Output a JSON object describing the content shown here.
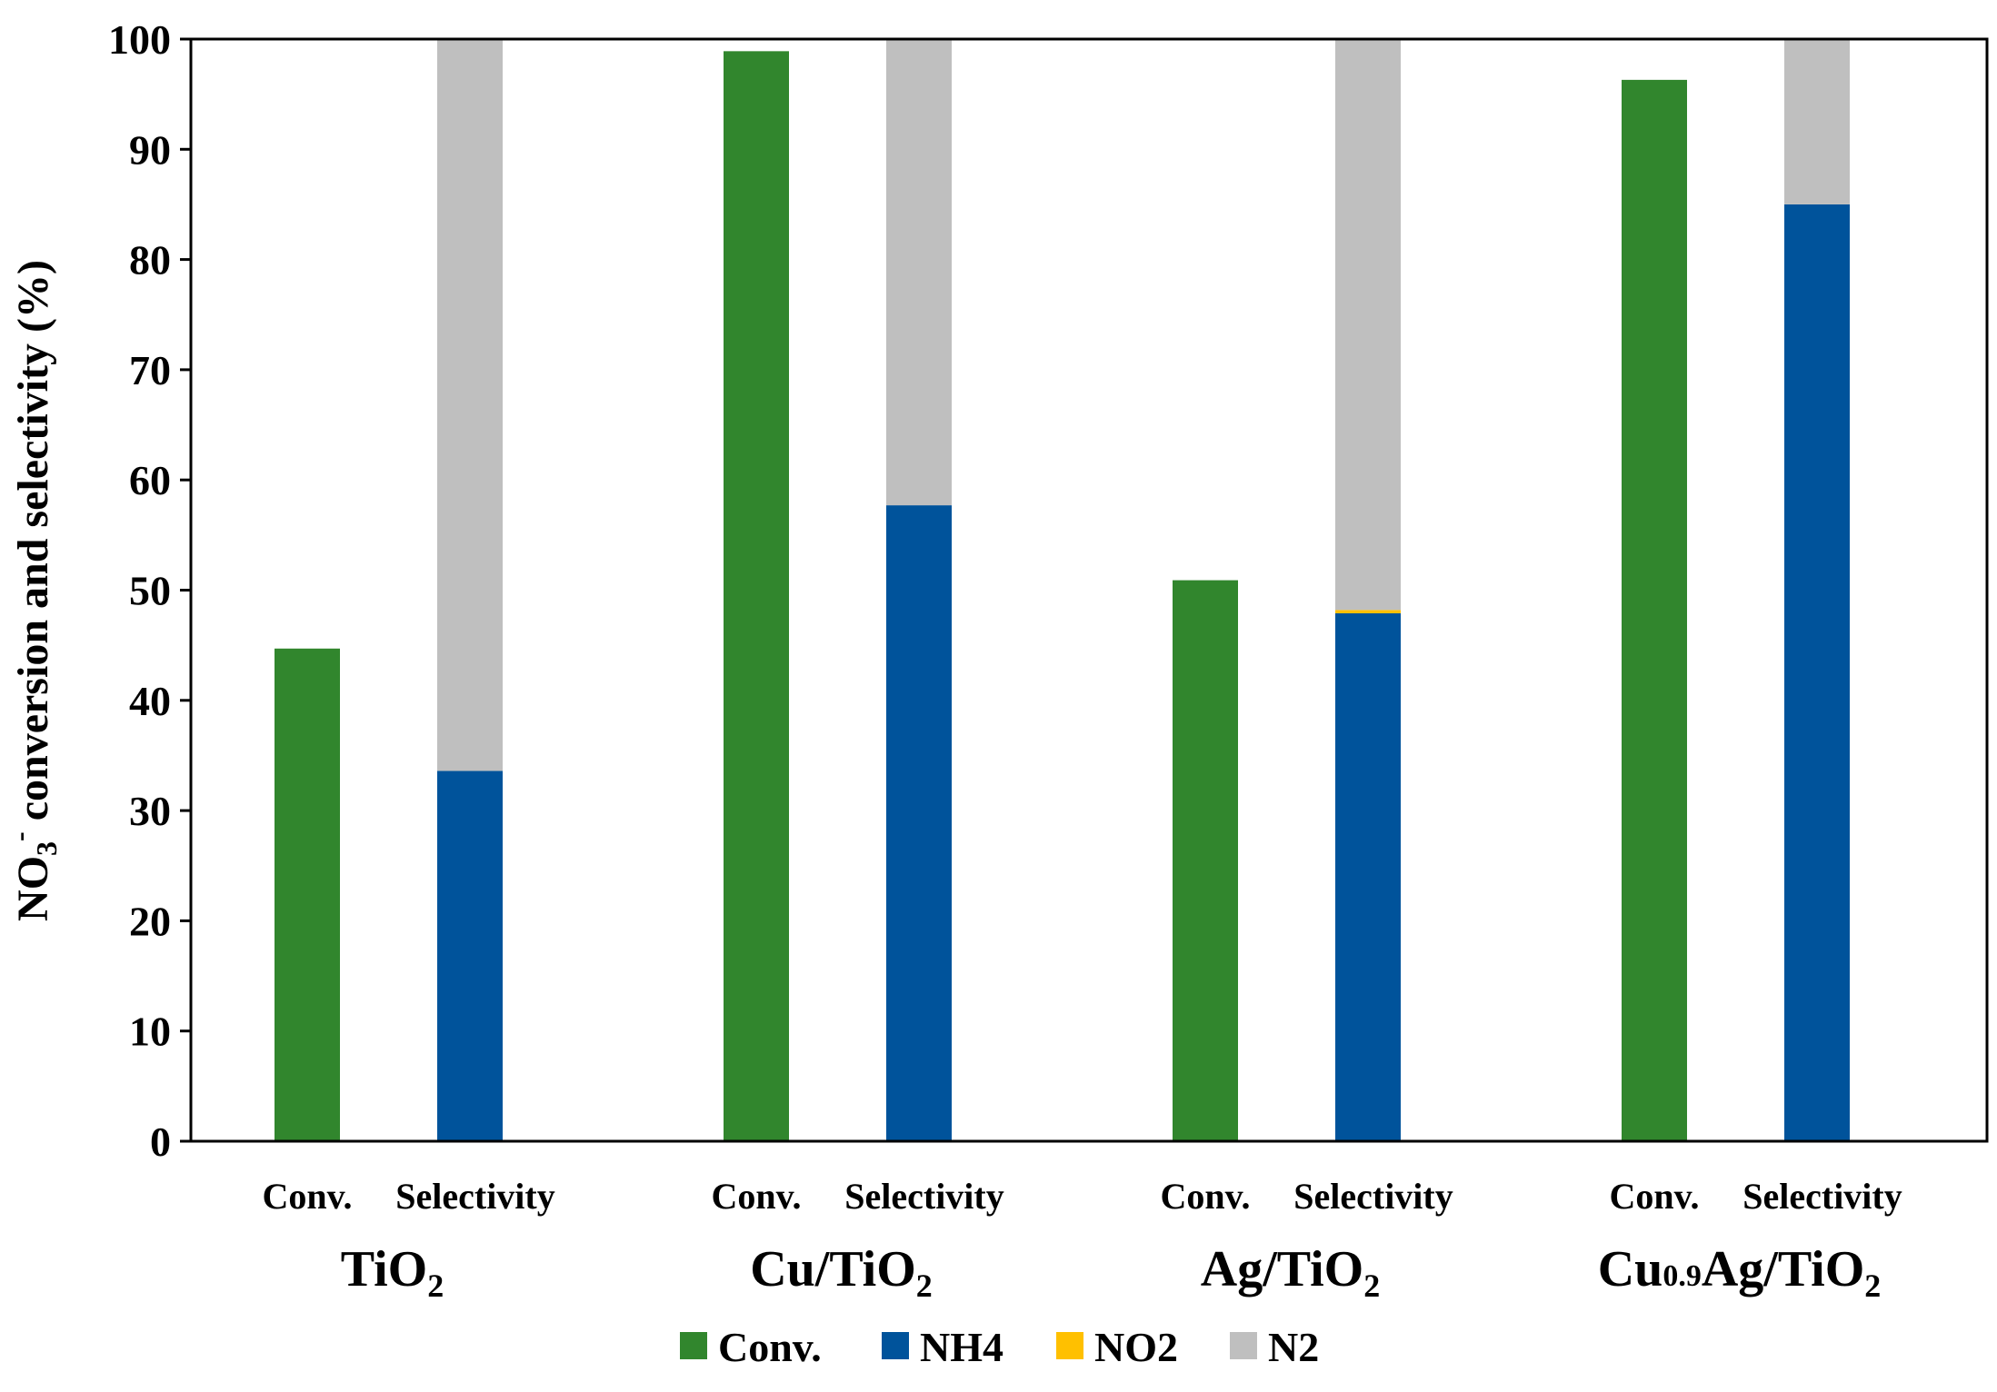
{
  "chart_data": {
    "type": "bar",
    "stacking": "stacked",
    "title": "",
    "ylabel": {
      "main": "NO",
      "sub": "3",
      "sup": "-",
      "rest": " conversion and selectivity (%)"
    },
    "ylim": [
      0,
      100
    ],
    "yticks": [
      "0",
      "10",
      "20",
      "30",
      "40",
      "50",
      "60",
      "70",
      "80",
      "90",
      "100"
    ],
    "groups": [
      {
        "name": "TiO2",
        "label": {
          "base": "TiO",
          "sub": "2"
        },
        "conv_label": "Conv.",
        "sel_label": "Selectivity",
        "conv": 44.7,
        "selectivity": {
          "NH4": 33.6,
          "NO2": 0.0,
          "N2": 66.4
        }
      },
      {
        "name": "Cu/TiO2",
        "label": {
          "base": "Cu/TiO",
          "sub": "2"
        },
        "conv_label": "Conv.",
        "sel_label": "Selectivity",
        "conv": 98.9,
        "selectivity": {
          "NH4": 57.7,
          "NO2": 0.0,
          "N2": 42.3
        }
      },
      {
        "name": "Ag/TiO2",
        "label": {
          "base": "Ag/TiO",
          "sub": "2"
        },
        "conv_label": "Conv.",
        "sel_label": "Selectivity",
        "conv": 50.9,
        "selectivity": {
          "NH4": 47.9,
          "NO2": 0.3,
          "N2": 51.8
        }
      },
      {
        "name": "Cu0.9Ag/TiO2",
        "label": {
          "pre": "Cu",
          "small": "0.9",
          "base": "Ag/TiO",
          "sub": "2"
        },
        "conv_label": "Conv.",
        "sel_label": "Selectivity",
        "conv": 96.3,
        "selectivity": {
          "NH4": 85.0,
          "NO2": 0.0,
          "N2": 15.0
        }
      }
    ],
    "series": [
      {
        "key": "Conv.",
        "name": "Conv.",
        "color": "#31862d"
      },
      {
        "key": "NH4",
        "name": "NH4",
        "color": "#00539b"
      },
      {
        "key": "NO2",
        "name": "NO2",
        "color": "#ffc000"
      },
      {
        "key": "N2",
        "name": "N2",
        "color": "#bfbfbf"
      }
    ],
    "legend": {
      "position": "bottom-center"
    }
  }
}
